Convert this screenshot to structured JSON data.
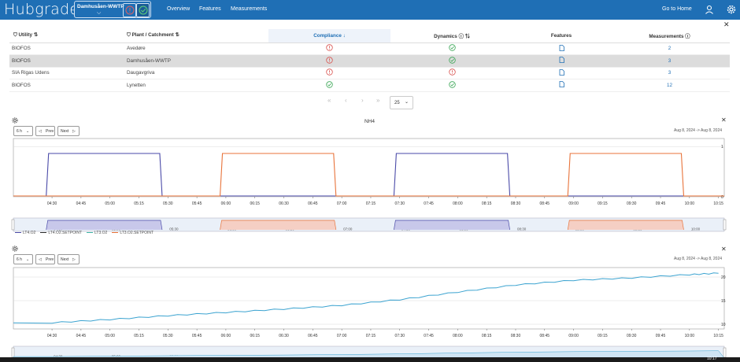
{
  "header": {
    "logo": "Hubgrade",
    "plant_selector": {
      "name": "Damhusåen-WWTP"
    },
    "nav_links": [
      "Overview",
      "Features",
      "Measurements"
    ],
    "goto_home": "Go to Home",
    "colors": {
      "nav_bg": "#1f6fb5",
      "ok": "#3aa655",
      "alert": "#d9534f",
      "link": "#1f6fb5"
    }
  },
  "table": {
    "columns": [
      "Utility",
      "Plant / Catchment",
      "Compliance",
      "Dynamics",
      "Features",
      "Measurements"
    ],
    "rows": [
      {
        "utility": "BIOFOS",
        "plant": "Avedøre",
        "compliance": "alert",
        "dynamics": "ok",
        "measurements": "2"
      },
      {
        "utility": "BIOFOS",
        "plant": "Damhusåen-WWTP",
        "compliance": "alert",
        "dynamics": "ok",
        "measurements": "3"
      },
      {
        "utility": "SIA Rigas Udens",
        "plant": "Daugavgriva",
        "compliance": "alert",
        "dynamics": "alert",
        "measurements": "3"
      },
      {
        "utility": "BIOFOS",
        "plant": "Lynetten",
        "compliance": "ok",
        "dynamics": "ok",
        "measurements": "12"
      }
    ],
    "page_size": "25"
  },
  "chart1": {
    "title": "NH4",
    "window": "6 h",
    "prev": "Prev",
    "next": "Next",
    "date_range": "Aug 8, 2024 -> Aug 8, 2024",
    "y_ticks": [
      "1",
      "0"
    ],
    "legend": [
      "LT4.O2",
      "LT4.O2.SETPOINT",
      "LT3.O2",
      "LT3.O2.SETPOINT"
    ],
    "colors": [
      "#4a4aa8",
      "#2c2c2c",
      "#3cb4a5",
      "#e8733a"
    ]
  },
  "chart2": {
    "window": "6 h",
    "prev": "Prev",
    "next": "Next",
    "date_range": "Aug 8, 2024 -> Aug 8, 2024",
    "y_ticks": [
      "20",
      "15",
      "10"
    ],
    "colors": [
      "#3ba3d0"
    ]
  },
  "x_ticks": [
    "04:30",
    "04:45",
    "05:00",
    "05:15",
    "05:30",
    "05:45",
    "06:00",
    "06:15",
    "06:30",
    "06:45",
    "07:00",
    "07:15",
    "07:30",
    "07:45",
    "08:00",
    "08:15",
    "08:30",
    "08:45",
    "09:00",
    "09:15",
    "09:30",
    "09:45",
    "10:00",
    "10:15"
  ],
  "nav_ticks": [
    "04:30",
    "05:00",
    "05:30",
    "06:00",
    "06:30",
    "07:00",
    "07:30",
    "08:00",
    "08:30",
    "09:00",
    "09:30",
    "10:00"
  ],
  "taskbar": {
    "time": "10:17"
  },
  "chart_data": [
    {
      "type": "line",
      "title": "NH4",
      "x": [
        "04:30",
        "04:45",
        "05:00",
        "05:15",
        "05:30",
        "05:45",
        "06:00",
        "06:15",
        "06:30",
        "06:45",
        "07:00",
        "07:15",
        "07:30",
        "07:45",
        "08:00",
        "08:15",
        "08:30",
        "08:45",
        "09:00",
        "09:15",
        "09:30",
        "09:45",
        "10:00",
        "10:15"
      ],
      "series": [
        {
          "name": "LT4.O2",
          "pulses": [
            [
              "04:27",
              "05:27"
            ],
            [
              "07:27",
              "08:27"
            ]
          ],
          "high": 1,
          "low": 0
        },
        {
          "name": "LT4.O2.SETPOINT",
          "values_const": 0
        },
        {
          "name": "LT3.O2",
          "values_const": 0
        },
        {
          "name": "LT3.O2.SETPOINT",
          "pulses": [
            [
              "05:57",
              "06:57"
            ],
            [
              "08:57",
              "09:57"
            ]
          ],
          "high": 1,
          "low": 0
        }
      ],
      "ylim": [
        0,
        1
      ],
      "legend": "bottom-left"
    },
    {
      "type": "line",
      "x": [
        "04:30",
        "05:00",
        "05:30",
        "06:00",
        "06:30",
        "07:00",
        "07:30",
        "08:00",
        "08:30",
        "09:00",
        "09:30",
        "10:00",
        "10:15"
      ],
      "series": [
        {
          "values": [
            10.3,
            11.0,
            11.8,
            12.5,
            13.2,
            14.0,
            15.2,
            16.8,
            18.3,
            19.3,
            19.8,
            20.5,
            20.8
          ]
        }
      ],
      "ylim": [
        9,
        22
      ]
    }
  ]
}
